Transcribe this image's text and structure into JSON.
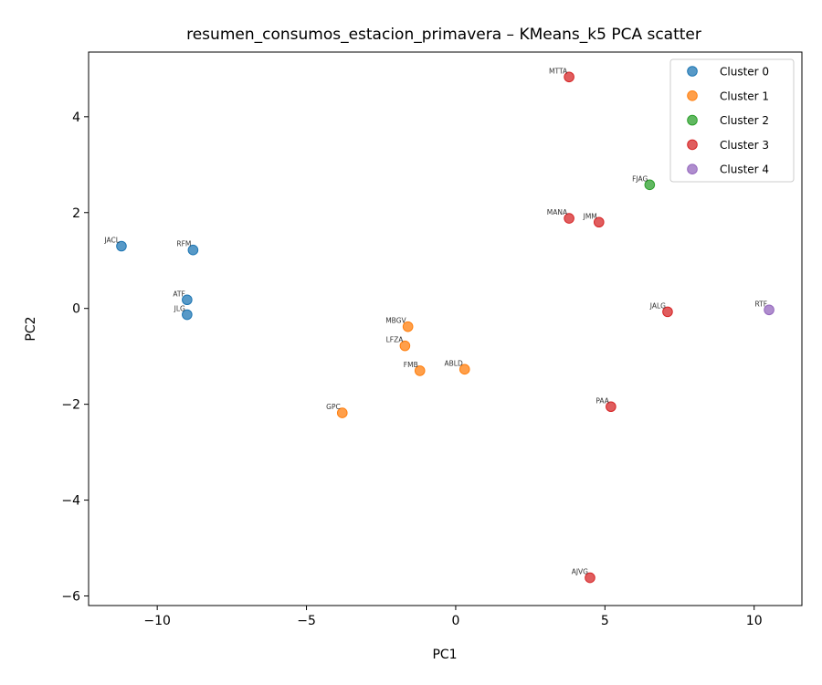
{
  "chart_data": {
    "type": "scatter",
    "title": "resumen_consumos_estacion_primavera – KMeans_k5 PCA scatter",
    "xlabel": "PC1",
    "ylabel": "PC2",
    "xlim": [
      -12.3,
      11.6
    ],
    "ylim": [
      -6.2,
      5.35
    ],
    "xticks": [
      -10,
      -5,
      0,
      5,
      10
    ],
    "yticks": [
      -6,
      -4,
      -2,
      0,
      2,
      4
    ],
    "xtick_labels": [
      "−10",
      "−5",
      "0",
      "5",
      "10"
    ],
    "ytick_labels": [
      "−6",
      "−4",
      "−2",
      "0",
      "2",
      "4"
    ],
    "grid": false,
    "legend_position": "top-right",
    "series": [
      {
        "name": "Cluster 0",
        "color": "#1f77b4",
        "points": [
          {
            "label": "JACL",
            "x": -11.2,
            "y": 1.3
          },
          {
            "label": "RFM",
            "x": -8.8,
            "y": 1.22
          },
          {
            "label": "ATF",
            "x": -9.0,
            "y": 0.18
          },
          {
            "label": "JLG",
            "x": -9.0,
            "y": -0.13
          }
        ]
      },
      {
        "name": "Cluster 1",
        "color": "#ff7f0e",
        "points": [
          {
            "label": "MBGV",
            "x": -1.6,
            "y": -0.38
          },
          {
            "label": "LFZA",
            "x": -1.7,
            "y": -0.78
          },
          {
            "label": "FMB",
            "x": -1.2,
            "y": -1.3
          },
          {
            "label": "ABLD",
            "x": 0.3,
            "y": -1.27
          },
          {
            "label": "GPC",
            "x": -3.8,
            "y": -2.18
          }
        ]
      },
      {
        "name": "Cluster 2",
        "color": "#2ca02c",
        "points": [
          {
            "label": "FJAG",
            "x": 6.5,
            "y": 2.58
          }
        ]
      },
      {
        "name": "Cluster 3",
        "color": "#d62728",
        "points": [
          {
            "label": "MTTA",
            "x": 3.8,
            "y": 4.83
          },
          {
            "label": "MANA",
            "x": 3.8,
            "y": 1.88
          },
          {
            "label": "JMM",
            "x": 4.8,
            "y": 1.8
          },
          {
            "label": "JALG",
            "x": 7.1,
            "y": -0.07
          },
          {
            "label": "PAA",
            "x": 5.2,
            "y": -2.05
          },
          {
            "label": "AJVG",
            "x": 4.5,
            "y": -5.62
          }
        ]
      },
      {
        "name": "Cluster 4",
        "color": "#9467bd",
        "points": [
          {
            "label": "RTF",
            "x": 10.5,
            "y": -0.03
          }
        ]
      }
    ]
  }
}
